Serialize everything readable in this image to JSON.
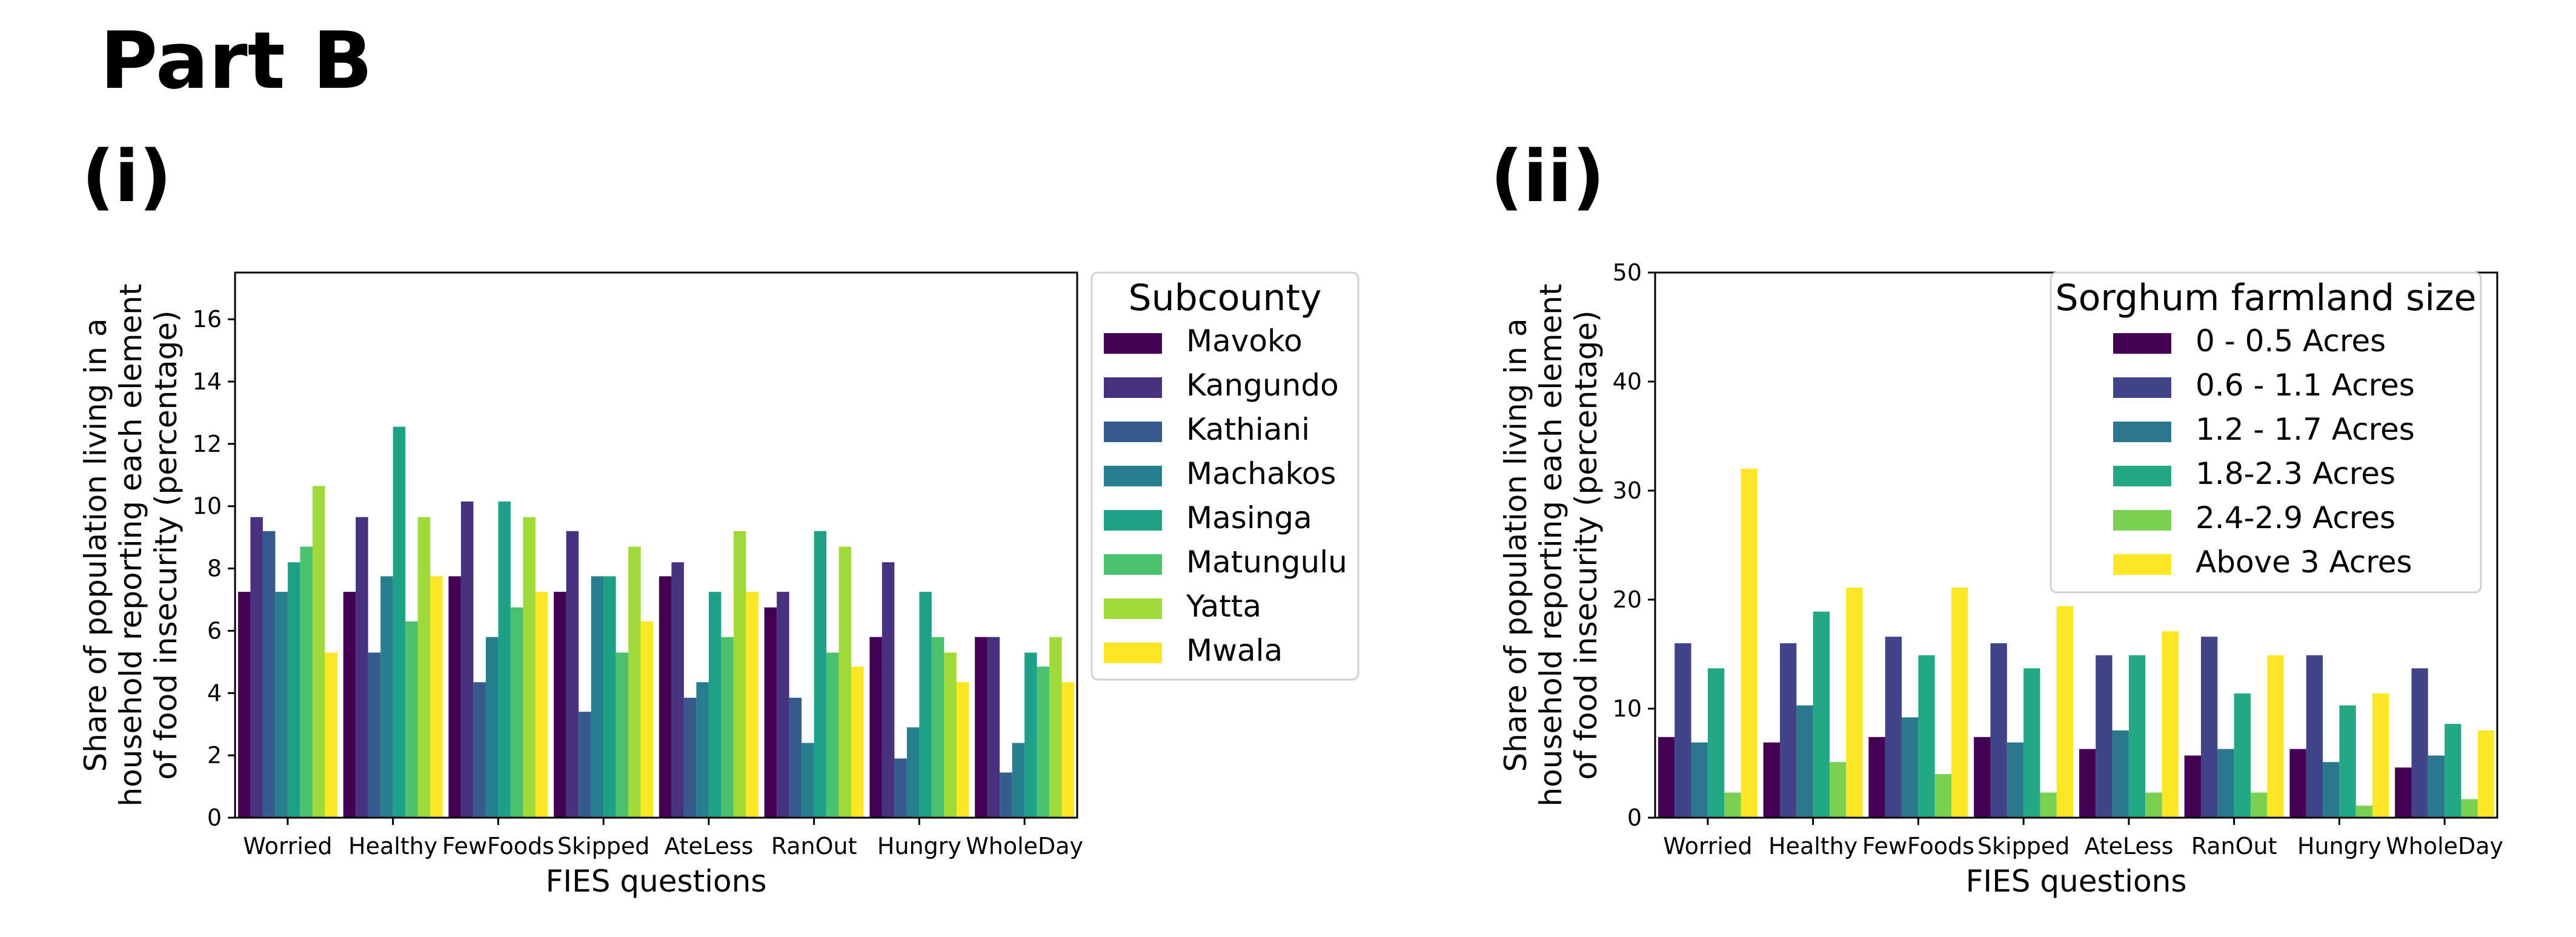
{
  "figure": {
    "title": "Part B"
  },
  "chart_data": [
    {
      "panel_label": "(i)",
      "type": "bar",
      "categories": [
        "Worried",
        "Healthy",
        "FewFoods",
        "Skipped",
        "AteLess",
        "RanOut",
        "Hungry",
        "WholeDay"
      ],
      "series": [
        {
          "name": "Mavoko",
          "color": "#440154",
          "values": [
            7.25,
            7.25,
            7.75,
            7.25,
            7.75,
            6.75,
            5.8,
            5.8
          ]
        },
        {
          "name": "Kangundo",
          "color": "#46327e",
          "values": [
            9.65,
            9.65,
            10.15,
            9.2,
            8.2,
            7.25,
            8.2,
            5.8
          ]
        },
        {
          "name": "Kathiani",
          "color": "#365c8d",
          "values": [
            9.2,
            5.3,
            4.35,
            3.4,
            3.85,
            3.85,
            1.9,
            1.45
          ]
        },
        {
          "name": "Machakos",
          "color": "#277f8e",
          "values": [
            7.25,
            7.75,
            5.8,
            7.75,
            4.35,
            2.4,
            2.9,
            2.4
          ]
        },
        {
          "name": "Masinga",
          "color": "#1fa187",
          "values": [
            8.2,
            12.55,
            10.15,
            7.75,
            7.25,
            9.2,
            7.25,
            5.3
          ]
        },
        {
          "name": "Matungulu",
          "color": "#4ac16d",
          "values": [
            8.7,
            6.3,
            6.75,
            5.3,
            5.8,
            5.3,
            5.8,
            4.85
          ]
        },
        {
          "name": "Yatta",
          "color": "#a0da39",
          "values": [
            10.65,
            9.65,
            9.65,
            8.7,
            9.2,
            8.7,
            5.3,
            5.8
          ]
        },
        {
          "name": "Mwala",
          "color": "#fde725",
          "values": [
            5.3,
            7.75,
            7.25,
            6.3,
            7.25,
            4.85,
            4.35,
            4.35
          ]
        }
      ],
      "xlabel": "FIES questions",
      "ylabel_lines": [
        "Share of population living in a",
        "household reporting each element",
        "of food insecurity (percentage)"
      ],
      "ylim": [
        0,
        17.5
      ],
      "yticks": [
        0,
        2,
        4,
        6,
        8,
        10,
        12,
        14,
        16
      ],
      "legend": {
        "title": "Subcounty",
        "placement": "outside-right"
      },
      "grid": false
    },
    {
      "panel_label": "(ii)",
      "type": "bar",
      "categories": [
        "Worried",
        "Healthy",
        "FewFoods",
        "Skipped",
        "AteLess",
        "RanOut",
        "Hungry",
        "WholeDay"
      ],
      "series": [
        {
          "name": "0 - 0.5 Acres",
          "color": "#440154",
          "values": [
            7.4,
            6.9,
            7.4,
            7.4,
            6.3,
            5.7,
            6.3,
            4.6
          ]
        },
        {
          "name": "0.6 - 1.1 Acres",
          "color": "#414487",
          "values": [
            16.0,
            16.0,
            16.6,
            16.0,
            14.9,
            16.6,
            14.9,
            13.7
          ]
        },
        {
          "name": "1.2 - 1.7 Acres",
          "color": "#2a788e",
          "values": [
            6.9,
            10.3,
            9.2,
            6.9,
            8.0,
            6.3,
            5.1,
            5.7
          ]
        },
        {
          "name": "1.8-2.3 Acres",
          "color": "#22a884",
          "values": [
            13.7,
            18.9,
            14.9,
            13.7,
            14.9,
            11.4,
            10.3,
            8.6
          ]
        },
        {
          "name": "2.4-2.9 Acres",
          "color": "#7ad151",
          "values": [
            2.3,
            5.1,
            4.0,
            2.3,
            2.3,
            2.3,
            1.1,
            1.7
          ]
        },
        {
          "name": "Above 3 Acres",
          "color": "#fde725",
          "values": [
            32.0,
            21.1,
            21.1,
            19.4,
            17.1,
            14.9,
            11.4,
            8.0
          ]
        }
      ],
      "xlabel": "FIES questions",
      "ylabel_lines": [
        "Share of population living in a",
        "household reporting each element",
        "of food insecurity (percentage)"
      ],
      "ylim": [
        0,
        50
      ],
      "yticks": [
        0,
        10,
        20,
        30,
        40,
        50
      ],
      "legend": {
        "title": "Sorghum farmland size",
        "placement": "top-right"
      },
      "grid": false
    }
  ]
}
